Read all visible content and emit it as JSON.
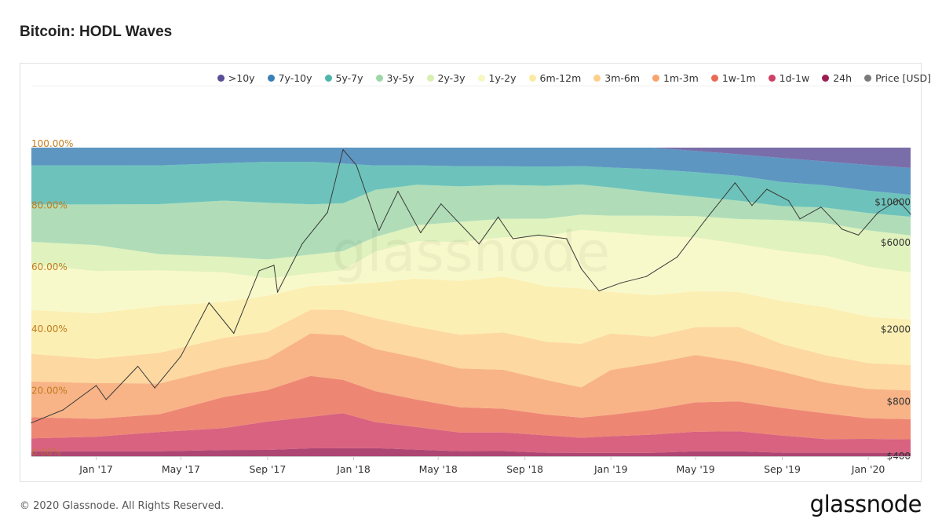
{
  "page": {
    "title": "Bitcoin: HODL Waves",
    "copyright": "© 2020 Glassnode. All Rights Reserved.",
    "brand": "glassnode",
    "watermark": "glassnode"
  },
  "chart_data": {
    "type": "area",
    "stacking": "percent",
    "title": "Bitcoin: HODL Waves",
    "x_range": [
      "2016-10-01",
      "2020-03-01"
    ],
    "x_ticks": [
      "Jan '17",
      "May '17",
      "Sep '17",
      "Jan '18",
      "May '18",
      "Sep '18",
      "Jan '19",
      "May '19",
      "Sep '19",
      "Jan '20"
    ],
    "x_tick_dates": [
      "2017-01-01",
      "2017-05-01",
      "2017-09-01",
      "2018-01-01",
      "2018-05-01",
      "2018-09-01",
      "2019-01-01",
      "2019-05-01",
      "2019-09-01",
      "2020-01-01"
    ],
    "y_left": {
      "range": [
        0,
        100
      ],
      "ticks": [
        "0.00%",
        "20.00%",
        "40.00%",
        "60.00%",
        "80.00%",
        "100.00%"
      ]
    },
    "y_right": {
      "scale": "log",
      "range": [
        400,
        20000
      ],
      "ticks": [
        "$400",
        "$800",
        "$2000",
        "$6000",
        "$10000"
      ]
    },
    "legend_position": "top-right",
    "dates": [
      "2016-10-01",
      "2017-01-01",
      "2017-04-01",
      "2017-07-01",
      "2017-09-01",
      "2017-11-01",
      "2017-12-17",
      "2018-02-01",
      "2018-04-01",
      "2018-06-01",
      "2018-08-01",
      "2018-10-01",
      "2018-11-20",
      "2019-01-01",
      "2019-03-01",
      "2019-05-01",
      "2019-07-01",
      "2019-09-01",
      "2019-11-01",
      "2020-01-01",
      "2020-03-01"
    ],
    "series": [
      {
        "name": ">10y",
        "color": "#5b4e96",
        "values": [
          0,
          0,
          0,
          0,
          0,
          0,
          0,
          0,
          0,
          0,
          0,
          0,
          0,
          0,
          0,
          1.0,
          2.0,
          3.0,
          4.0,
          5.0,
          6.0
        ]
      },
      {
        "name": "7y-10y",
        "color": "#3a7fb5",
        "values": [
          5.5,
          5.5,
          5.5,
          5.0,
          4.5,
          4.5,
          5.0,
          5.5,
          5.5,
          5.5,
          5.5,
          5.5,
          5.5,
          6.0,
          6.5,
          6.5,
          6.5,
          7.0,
          7.0,
          7.5,
          8.0
        ]
      },
      {
        "name": "5y-7y",
        "color": "#4db6ac",
        "values": [
          12.0,
          12.0,
          12.0,
          12.0,
          13.0,
          13.5,
          12.5,
          7.5,
          6.0,
          6.0,
          5.5,
          5.5,
          5.5,
          6.0,
          7.0,
          7.5,
          7.5,
          7.0,
          6.5,
          6.5,
          6.5
        ]
      },
      {
        "name": "3y-5y",
        "color": "#9fd6a8",
        "values": [
          11.5,
          12.5,
          15.5,
          18.0,
          18.0,
          16.0,
          15.0,
          14.5,
          12.5,
          10.5,
          10.0,
          9.5,
          9.0,
          8.5,
          7.0,
          6.0,
          5.5,
          4.0,
          4.5,
          5.0,
          5.5
        ]
      },
      {
        "name": "2y-3y",
        "color": "#d9efaf",
        "values": [
          7.0,
          8.0,
          5.0,
          5.0,
          6.0,
          6.0,
          6.0,
          4.5,
          5.0,
          6.0,
          5.5,
          5.0,
          4.5,
          5.0,
          6.0,
          6.5,
          7.5,
          9.0,
          9.5,
          10.5,
          11.0
        ]
      },
      {
        "name": "1y-2y",
        "color": "#f6f8c0",
        "values": [
          14.0,
          13.0,
          11.0,
          9.5,
          5.5,
          4.0,
          4.5,
          9.5,
          11.5,
          11.5,
          11.5,
          14.5,
          17.5,
          18.0,
          18.0,
          16.5,
          14.5,
          14.5,
          15.0,
          14.5,
          14.0
        ]
      },
      {
        "name": "6m-12m",
        "color": "#fbeba2",
        "values": [
          13.5,
          14.0,
          14.5,
          11.5,
          11.5,
          7.5,
          8.0,
          11.0,
          15.0,
          16.0,
          16.5,
          16.0,
          16.5,
          12.5,
          12.5,
          11.0,
          10.5,
          12.5,
          14.0,
          13.5,
          13.5
        ]
      },
      {
        "name": "3m-6m",
        "color": "#fccf8c",
        "values": [
          8.5,
          7.5,
          9.5,
          9.5,
          8.5,
          7.5,
          8.0,
          9.5,
          9.5,
          10.0,
          11.0,
          11.0,
          13.0,
          11.0,
          8.0,
          8.5,
          10.5,
          8.0,
          8.0,
          7.5,
          7.5
        ]
      },
      {
        "name": "1m-3m",
        "color": "#f7a36d",
        "values": [
          11.0,
          11.0,
          9.5,
          9.5,
          10.0,
          13.5,
          14.0,
          13.0,
          13.0,
          11.5,
          11.5,
          10.0,
          9.0,
          13.5,
          14.0,
          14.5,
          12.0,
          10.5,
          9.0,
          8.5,
          8.5
        ]
      },
      {
        "name": "1w-1m",
        "color": "#ea6b55",
        "values": [
          6.5,
          5.5,
          5.5,
          10.0,
          10.0,
          13.0,
          10.5,
          9.5,
          8.5,
          7.5,
          7.0,
          6.0,
          6.0,
          6.5,
          7.5,
          9.0,
          9.0,
          8.0,
          7.5,
          6.0,
          6.0
        ]
      },
      {
        "name": "1d-1w",
        "color": "#cf4064",
        "values": [
          4.0,
          4.5,
          6.0,
          7.0,
          9.0,
          10.0,
          11.0,
          8.0,
          7.0,
          5.5,
          5.5,
          5.0,
          4.5,
          5.0,
          5.5,
          6.0,
          6.0,
          5.0,
          4.0,
          4.0,
          4.0
        ]
      },
      {
        "name": "24h",
        "color": "#9c1d54",
        "values": [
          1.5,
          1.5,
          1.5,
          2.0,
          2.0,
          2.5,
          2.5,
          2.5,
          2.0,
          1.5,
          1.5,
          1.0,
          1.0,
          1.0,
          1.0,
          1.5,
          1.5,
          1.0,
          1.0,
          1.0,
          1.0
        ]
      }
    ],
    "price_series": {
      "name": "Price [USD]",
      "color": "#3a3a3a",
      "dates": [
        "2016-10-01",
        "2016-11-15",
        "2017-01-01",
        "2017-01-15",
        "2017-03-01",
        "2017-03-25",
        "2017-05-01",
        "2017-06-10",
        "2017-07-15",
        "2017-08-20",
        "2017-09-10",
        "2017-09-15",
        "2017-10-20",
        "2017-11-25",
        "2017-12-17",
        "2018-01-05",
        "2018-02-06",
        "2018-03-05",
        "2018-04-06",
        "2018-05-05",
        "2018-06-28",
        "2018-07-25",
        "2018-08-15",
        "2018-09-20",
        "2018-10-30",
        "2018-11-20",
        "2018-12-15",
        "2019-01-15",
        "2019-02-20",
        "2019-04-05",
        "2019-05-15",
        "2019-06-26",
        "2019-07-20",
        "2019-08-10",
        "2019-09-10",
        "2019-09-26",
        "2019-10-26",
        "2019-11-25",
        "2019-12-18",
        "2020-01-15",
        "2020-02-12",
        "2020-03-01"
      ],
      "values": [
        610,
        720,
        980,
        820,
        1250,
        950,
        1420,
        2800,
        1900,
        4200,
        4500,
        3200,
        5900,
        8800,
        19500,
        16000,
        7000,
        11500,
        6800,
        9800,
        5900,
        8300,
        6300,
        6600,
        6300,
        4300,
        3250,
        3600,
        3900,
        5000,
        8000,
        12800,
        9600,
        11800,
        10200,
        8100,
        9400,
        7100,
        6600,
        8800,
        10300,
        8600
      ]
    }
  }
}
